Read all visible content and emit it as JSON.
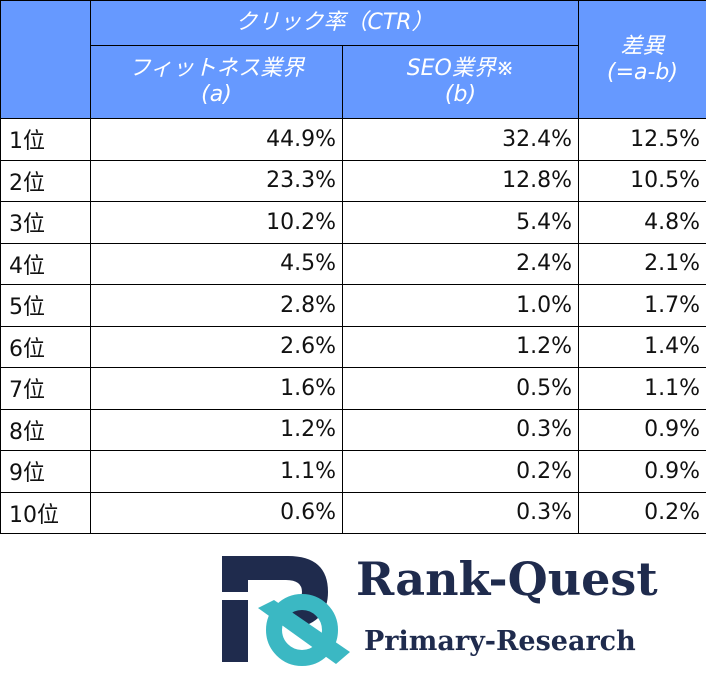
{
  "table": {
    "header": {
      "group": "クリック率（CTR）",
      "col_a": [
        "フィットネス業界",
        "(a)"
      ],
      "col_b": [
        "SEO業界※",
        "(b)"
      ],
      "col_diff": [
        "差異",
        "(=a-b)"
      ]
    },
    "rows": [
      [
        "1位",
        "44.9%",
        "32.4%",
        "12.5%"
      ],
      [
        "2位",
        "23.3%",
        "12.8%",
        "10.5%"
      ],
      [
        "3位",
        "10.2%",
        "5.4%",
        "4.8%"
      ],
      [
        "4位",
        "4.5%",
        "2.4%",
        "2.1%"
      ],
      [
        "5位",
        "2.8%",
        "1.0%",
        "1.7%"
      ],
      [
        "6位",
        "2.6%",
        "1.2%",
        "1.4%"
      ],
      [
        "7位",
        "1.6%",
        "0.5%",
        "1.1%"
      ],
      [
        "8位",
        "1.2%",
        "0.3%",
        "0.9%"
      ],
      [
        "9位",
        "1.1%",
        "0.2%",
        "0.9%"
      ],
      [
        "10位",
        "0.6%",
        "0.3%",
        "0.2%"
      ]
    ]
  },
  "logo": {
    "title": "Rank-Quest",
    "subtitle": "Primary-Research"
  }
}
